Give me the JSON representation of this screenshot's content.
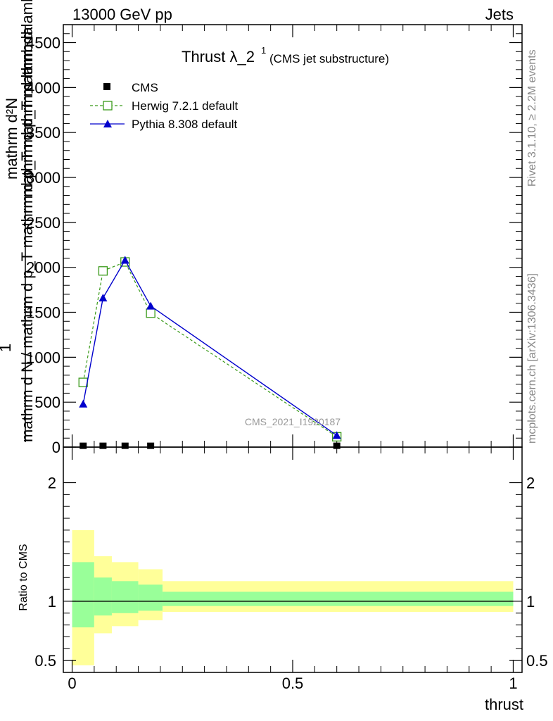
{
  "header": {
    "left": "13000 GeV pp",
    "right": "Jets"
  },
  "side": {
    "rivet": "Rivet 3.1.10, ≥ 2.2M events",
    "mcplots": "mcplots.cern.ch [arXiv:1306.3436]"
  },
  "watermark": "CMS_2021_I1920187",
  "legend": {
    "cms": "CMS",
    "herwig": "Herwig 7.2.1 default",
    "pythia": "Pythia 8.308 default"
  },
  "colors": {
    "cms": "#000000",
    "herwig": "#3a9a1a",
    "pythia": "#0000cc",
    "band_outer": "#ffff99",
    "band_inner": "#99ff99"
  },
  "chart_data": {
    "type": "line",
    "title_main": "Thrust λ_2",
    "title_sup": "1",
    "title_sub": "(CMS jet substructure)",
    "xlabel": "thrust",
    "ylabel_numer": "1",
    "ylabel_denom": "mathrm d N / mathrm d p_T mathrm d p_T mathrm d lambda",
    "ylabel_numer_full": "mathrm d²N",
    "ylabel_top": "mathrm d p_T mathrm d lambda",
    "ratio_ylabel": "Ratio to CMS",
    "xlim": [
      -0.02,
      1.02
    ],
    "ylim": [
      0,
      4700
    ],
    "ratio_ylim": [
      0.4,
      2.3
    ],
    "xticks": [
      0,
      0.5,
      1
    ],
    "xtick_labels": [
      "0",
      "0.5",
      "1"
    ],
    "yticks": [
      0,
      500,
      1000,
      1500,
      2000,
      2500,
      3000,
      3500,
      4000,
      4500
    ],
    "ytick_labels": [
      "0",
      "500",
      "1000",
      "1500",
      "2000",
      "2500",
      "3000",
      "3500",
      "4000",
      "4500"
    ],
    "ratio_yticks": [
      0.5,
      1,
      2
    ],
    "ratio_ytick_labels": [
      "0.5",
      "1",
      "2"
    ],
    "cms": {
      "name": "CMS",
      "x": [
        0.025,
        0.07,
        0.12,
        0.178,
        0.6
      ],
      "y": [
        3,
        3,
        3,
        3,
        3
      ]
    },
    "series": [
      {
        "name": "Herwig 7.2.1 default",
        "x": [
          0.025,
          0.07,
          0.12,
          0.178,
          0.6
        ],
        "y": [
          720,
          1960,
          2060,
          1490,
          115
        ]
      },
      {
        "name": "Pythia 8.308 default",
        "x": [
          0.025,
          0.07,
          0.12,
          0.178,
          0.6
        ],
        "y": [
          480,
          1660,
          2080,
          1570,
          130
        ],
        "yerr": [
          15,
          25,
          40,
          25,
          10
        ]
      }
    ],
    "ratio_bands": [
      {
        "x0": 0.0,
        "x1": 0.05,
        "outer": [
          0.46,
          1.6
        ],
        "inner": [
          0.78,
          1.33
        ]
      },
      {
        "x0": 0.05,
        "x1": 0.09,
        "outer": [
          0.73,
          1.38
        ],
        "inner": [
          0.88,
          1.2
        ]
      },
      {
        "x0": 0.09,
        "x1": 0.15,
        "outer": [
          0.79,
          1.33
        ],
        "inner": [
          0.9,
          1.17
        ]
      },
      {
        "x0": 0.15,
        "x1": 0.205,
        "outer": [
          0.84,
          1.27
        ],
        "inner": [
          0.92,
          1.14
        ]
      },
      {
        "x0": 0.205,
        "x1": 1.0,
        "outer": [
          0.91,
          1.17
        ],
        "inner": [
          0.96,
          1.08
        ]
      }
    ]
  }
}
